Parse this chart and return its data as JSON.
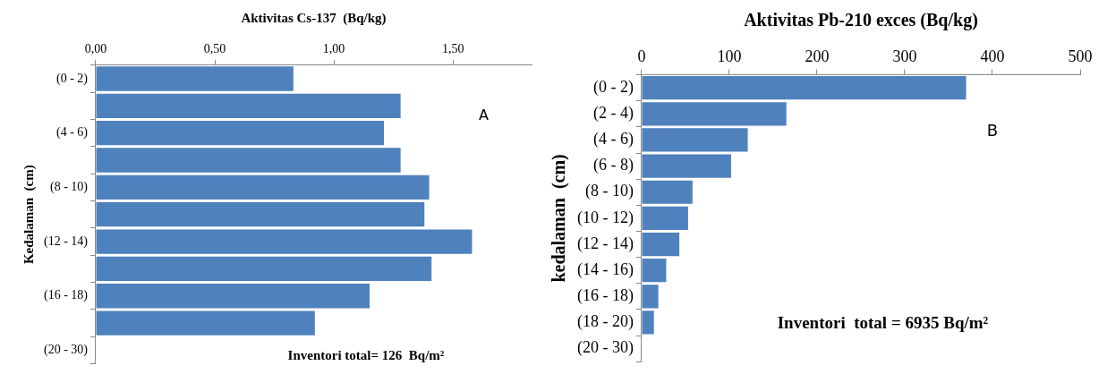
{
  "chart_data": [
    {
      "type": "bar",
      "orientation": "horizontal",
      "xlabel": "Aktivitas Cs-137  (Bq/kg)",
      "ylabel": "Kedalaman  (cm)",
      "categories": [
        "(0 - 2)",
        null,
        "(4 - 6)",
        null,
        "(8 - 10)",
        null,
        "(12 - 14)",
        null,
        "(16 - 18)",
        null,
        "(20 - 30)"
      ],
      "values": [
        0.83,
        1.28,
        1.21,
        1.28,
        1.4,
        1.38,
        1.58,
        1.41,
        1.15,
        0.92,
        null
      ],
      "color": "#4f81bd",
      "xlim": [
        0,
        1.83
      ],
      "xticks": [
        {
          "value": 0,
          "label": "0,00"
        },
        {
          "value": 0.5,
          "label": "0,50"
        },
        {
          "value": 1,
          "label": "1,00"
        },
        {
          "value": 1.5,
          "label": "1,50"
        }
      ],
      "grid": false,
      "annotations": [
        "A",
        "Inventori total= 126  Bq/m²"
      ]
    },
    {
      "type": "bar",
      "orientation": "horizontal",
      "xlabel": "Aktivitas Pb-210 exces (Bq/kg)",
      "ylabel": "kedalaman  (cm)",
      "categories": [
        "(0 - 2)",
        "(2 - 4)",
        "(4 - 6)",
        "(6 - 8)",
        "(8 - 10)",
        "(10 - 12)",
        "(12 - 14)",
        "(14 - 16)",
        "(16 - 18)",
        "(18 - 20)",
        "(20 - 30)"
      ],
      "values": [
        370,
        165,
        121,
        102,
        58,
        53,
        43,
        28,
        19,
        14,
        null
      ],
      "color": "#4f81bd",
      "xlim": [
        0,
        500
      ],
      "xticks": [
        0,
        100,
        200,
        300,
        400,
        500
      ],
      "grid": false,
      "annotations": [
        "B",
        "Inventori  total = 6935 Bq/m²"
      ]
    }
  ]
}
